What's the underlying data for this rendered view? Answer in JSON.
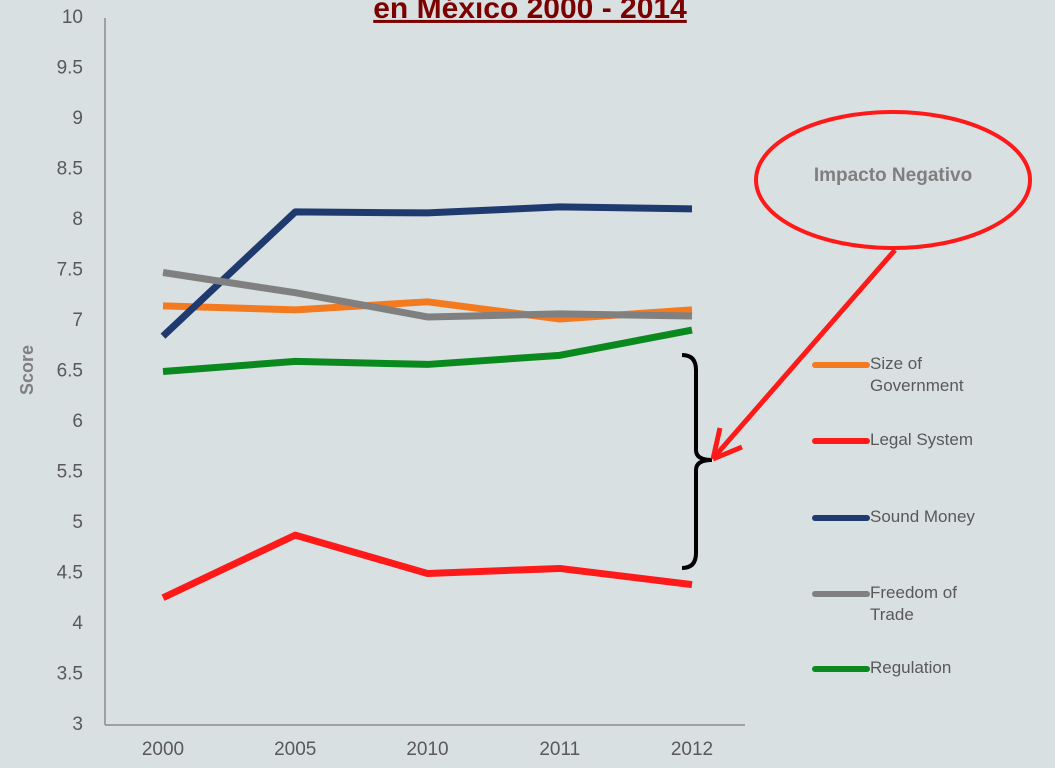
{
  "chart_data": {
    "type": "line",
    "title": "en México 2000 - 2014",
    "y_label": "Score",
    "annotation": "Impacto Negativo",
    "categories": [
      "2000",
      "2005",
      "2010",
      "2011",
      "2012"
    ],
    "series": [
      {
        "name": "Size of Government",
        "color": "#f47a20",
        "values": [
          7.15,
          7.11,
          7.19,
          7.02,
          7.11
        ]
      },
      {
        "name": "Legal System",
        "color": "#ff1a1a",
        "values": [
          4.26,
          4.88,
          4.5,
          4.55,
          4.39
        ]
      },
      {
        "name": "Sound Money",
        "color": "#1f3a6e",
        "values": [
          6.85,
          8.08,
          8.07,
          8.13,
          8.11
        ]
      },
      {
        "name": "Freedom of Trade",
        "color": "#808080",
        "values": [
          7.48,
          7.28,
          7.04,
          7.07,
          7.05
        ]
      },
      {
        "name": "Regulation",
        "color": "#0a8a1e",
        "values": [
          6.5,
          6.6,
          6.57,
          6.66,
          6.91
        ]
      }
    ],
    "ylim": [
      3,
      10
    ],
    "yticks": [
      3,
      3.5,
      4,
      4.5,
      5,
      5.5,
      6,
      6.5,
      7,
      7.5,
      8,
      8.5,
      9,
      9.5,
      10
    ]
  }
}
